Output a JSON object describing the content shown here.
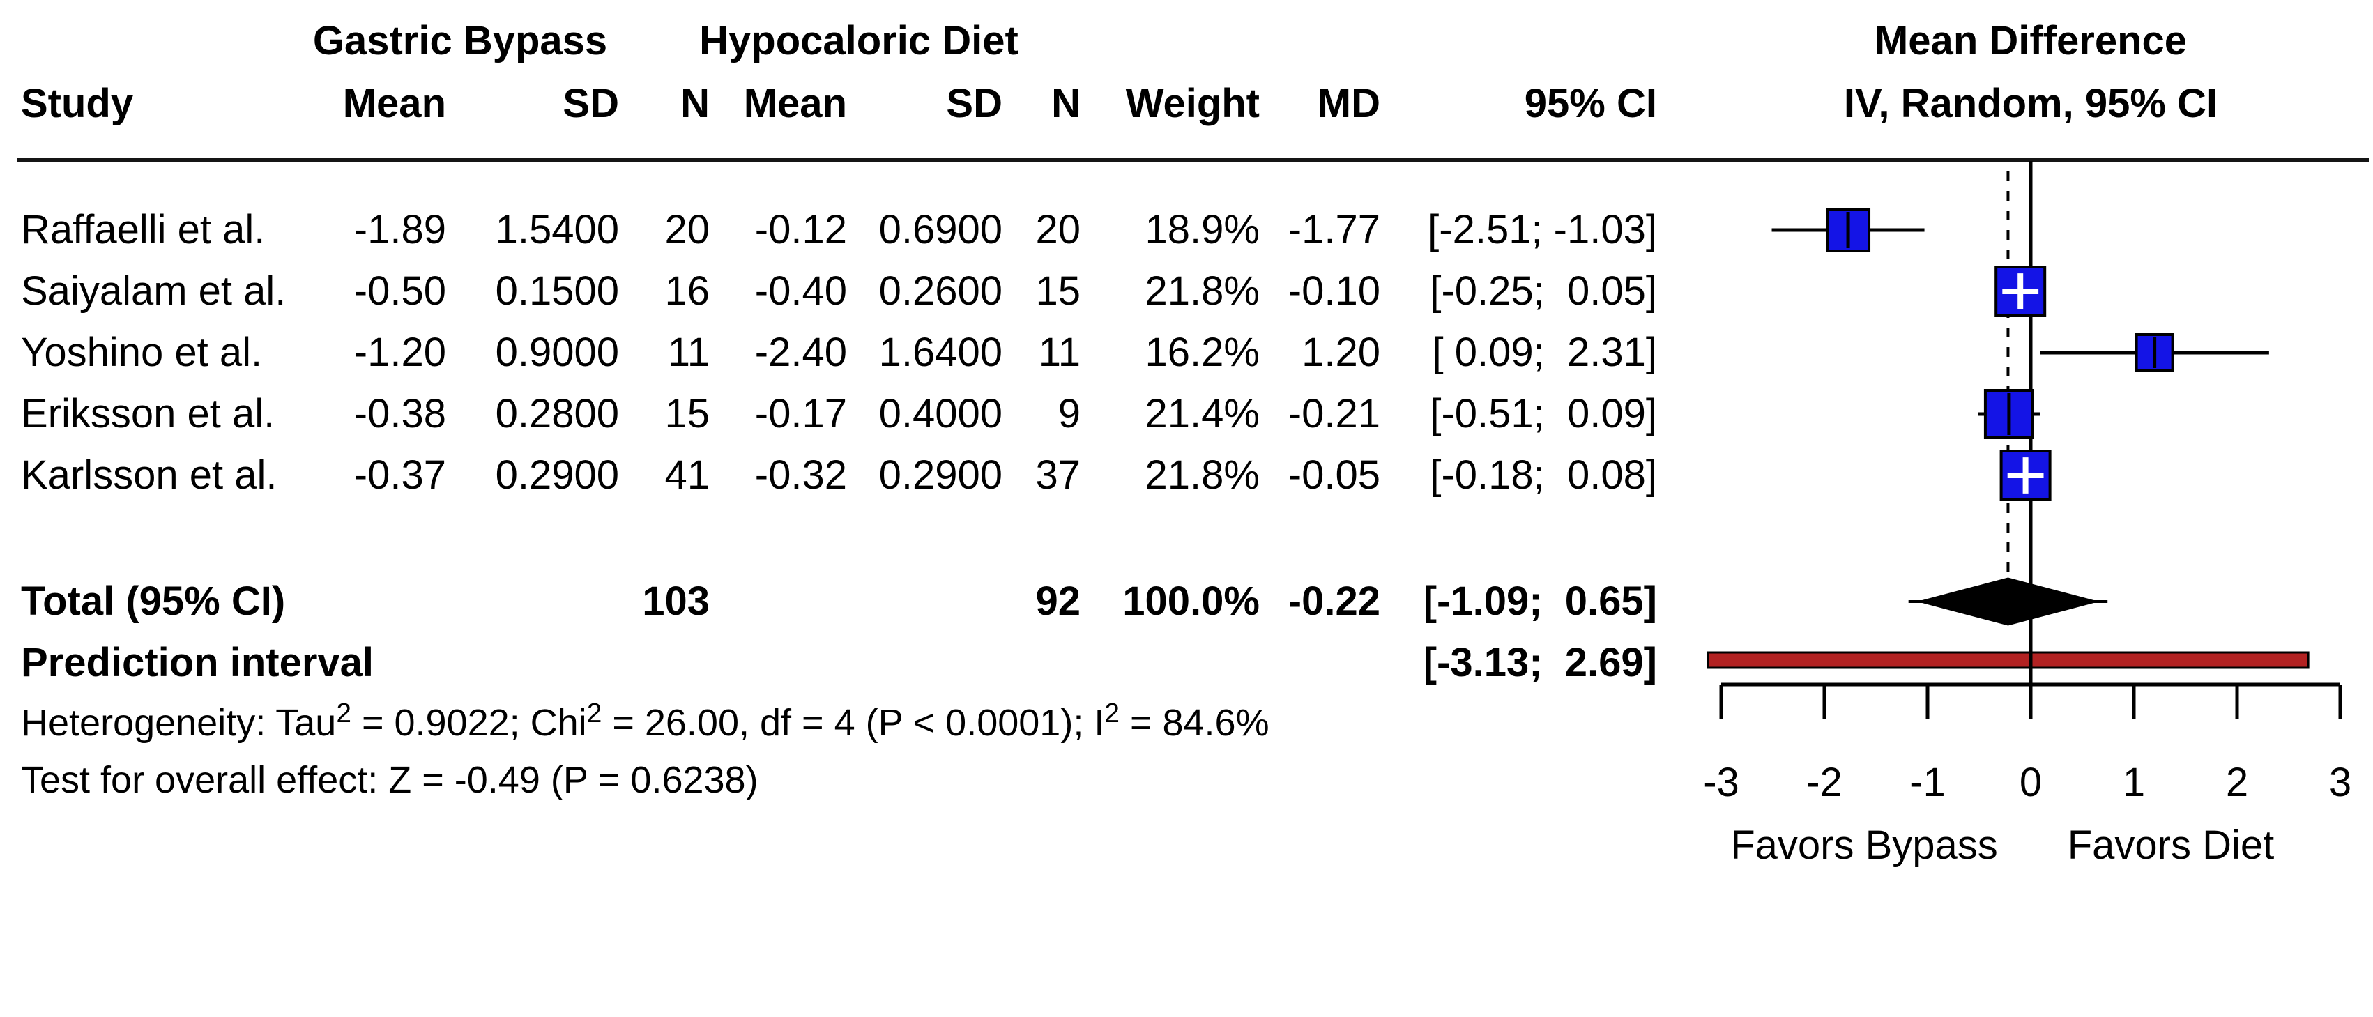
{
  "table": {
    "group1_header": "Gastric Bypass",
    "group2_header": "Hypocaloric Diet",
    "effect_header_line1": "Mean Difference",
    "effect_header_line2": "IV, Random, 95% CI",
    "columns": {
      "study": "Study",
      "mean1": "Mean",
      "sd1": "SD",
      "n1": "N",
      "mean2": "Mean",
      "sd2": "SD",
      "n2": "N",
      "weight": "Weight",
      "md": "MD",
      "ci": "95% CI"
    },
    "rows": [
      {
        "study": "Raffaelli et al.",
        "gb_mean": "-1.89",
        "gb_sd": "1.5400",
        "gb_n": "20",
        "hd_mean": "-0.12",
        "hd_sd": "0.6900",
        "hd_n": "20",
        "weight": "18.9%",
        "md": "-1.77",
        "ci": "[-2.51; -1.03]"
      },
      {
        "study": "Saiyalam et al.",
        "gb_mean": "-0.50",
        "gb_sd": "0.1500",
        "gb_n": "16",
        "hd_mean": "-0.40",
        "hd_sd": "0.2600",
        "hd_n": "15",
        "weight": "21.8%",
        "md": "-0.10",
        "ci": "[-0.25;  0.05]"
      },
      {
        "study": "Yoshino et al.",
        "gb_mean": "-1.20",
        "gb_sd": "0.9000",
        "gb_n": "11",
        "hd_mean": "-2.40",
        "hd_sd": "1.6400",
        "hd_n": "11",
        "weight": "16.2%",
        "md": "1.20",
        "ci": "[ 0.09;  2.31]"
      },
      {
        "study": "Eriksson et al.",
        "gb_mean": "-0.38",
        "gb_sd": "0.2800",
        "gb_n": "15",
        "hd_mean": "-0.17",
        "hd_sd": "0.4000",
        "hd_n": "9",
        "weight": "21.4%",
        "md": "-0.21",
        "ci": "[-0.51;  0.09]"
      },
      {
        "study": "Karlsson et al.",
        "gb_mean": "-0.37",
        "gb_sd": "0.2900",
        "gb_n": "41",
        "hd_mean": "-0.32",
        "hd_sd": "0.2900",
        "hd_n": "37",
        "weight": "21.8%",
        "md": "-0.05",
        "ci": "[-0.18;  0.08]"
      }
    ],
    "total_row": {
      "label": "Total (95% CI)",
      "gb_n": "103",
      "hd_n": "92",
      "weight": "100.0%",
      "md": "-0.22",
      "ci": "[-1.09;  0.65]"
    },
    "prediction_row": {
      "label": "Prediction interval",
      "ci": "[-3.13;  2.69]"
    }
  },
  "stats": {
    "heterogeneity_text": "Heterogeneity: Tau2 = 0.9022; Chi2 = 26.00, df = 4 (P < 0.0001); I2 = 84.6%",
    "heterogeneity_segments": [
      {
        "t": "Heterogeneity: Tau"
      },
      {
        "sup": "2"
      },
      {
        "t": " = 0.9022; Chi"
      },
      {
        "sup": "2"
      },
      {
        "t": " = 26.00, df = 4 (P < 0.0001); I"
      },
      {
        "sup": "2"
      },
      {
        "t": " = 84.6%"
      }
    ],
    "overall_test_text": "Test for overall effect: Z = -0.49 (P = 0.6238)"
  },
  "colors": {
    "square": "#1414e6",
    "square_border": "#000000",
    "diamond": "#000000",
    "prediction_bar": "#b22222",
    "line": "#000000",
    "plus_marker": "#ffffff"
  },
  "chart_data": {
    "type": "forest",
    "effect_measure": "Mean Difference",
    "model": "IV, Random, 95% CI",
    "studies": [
      {
        "name": "Raffaelli et al.",
        "md": -1.77,
        "ci_low": -2.51,
        "ci_high": -1.03,
        "weight_pct": 18.9
      },
      {
        "name": "Saiyalam et al.",
        "md": -0.1,
        "ci_low": -0.25,
        "ci_high": 0.05,
        "weight_pct": 21.8
      },
      {
        "name": "Yoshino et al.",
        "md": 1.2,
        "ci_low": 0.09,
        "ci_high": 2.31,
        "weight_pct": 16.2
      },
      {
        "name": "Eriksson et al.",
        "md": -0.21,
        "ci_low": -0.51,
        "ci_high": 0.09,
        "weight_pct": 21.4
      },
      {
        "name": "Karlsson et al.",
        "md": -0.05,
        "ci_low": -0.18,
        "ci_high": 0.08,
        "weight_pct": 21.8
      }
    ],
    "total": {
      "md": -0.22,
      "ci_low": -1.09,
      "ci_high": 0.65
    },
    "prediction_interval": {
      "low": -3.13,
      "high": 2.69
    },
    "axis": {
      "ticks": [
        -3,
        -2,
        -1,
        0,
        1,
        2,
        3
      ],
      "range": [
        -3,
        3
      ],
      "zero_line_at": 0,
      "dashed_line_at": -0.22,
      "favors_left": "Favors Bypass",
      "favors_right": "Favors Diet"
    }
  }
}
